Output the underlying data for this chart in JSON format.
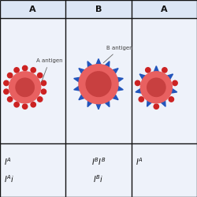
{
  "background_color": "#ffffff",
  "cell_bg": "#eef2fa",
  "header_bg": "#dce6f5",
  "grid_color": "#111111",
  "col_labels": [
    "A",
    "B",
    "A"
  ],
  "cell_color": "#e86060",
  "inner_color": "#c84040",
  "spike_color_A": "#cc2222",
  "spike_color_B": "#2255bb",
  "label_A": "A antigen",
  "label_B": "B antigen",
  "genotype_col0_line1": "$I^A$",
  "genotype_col0_line2": "$I^Ai$",
  "genotype_col1_line1": "$I^BI^B$",
  "genotype_col1_line2": "$I^Bi$",
  "genotype_col2_line1": "$I^A$"
}
